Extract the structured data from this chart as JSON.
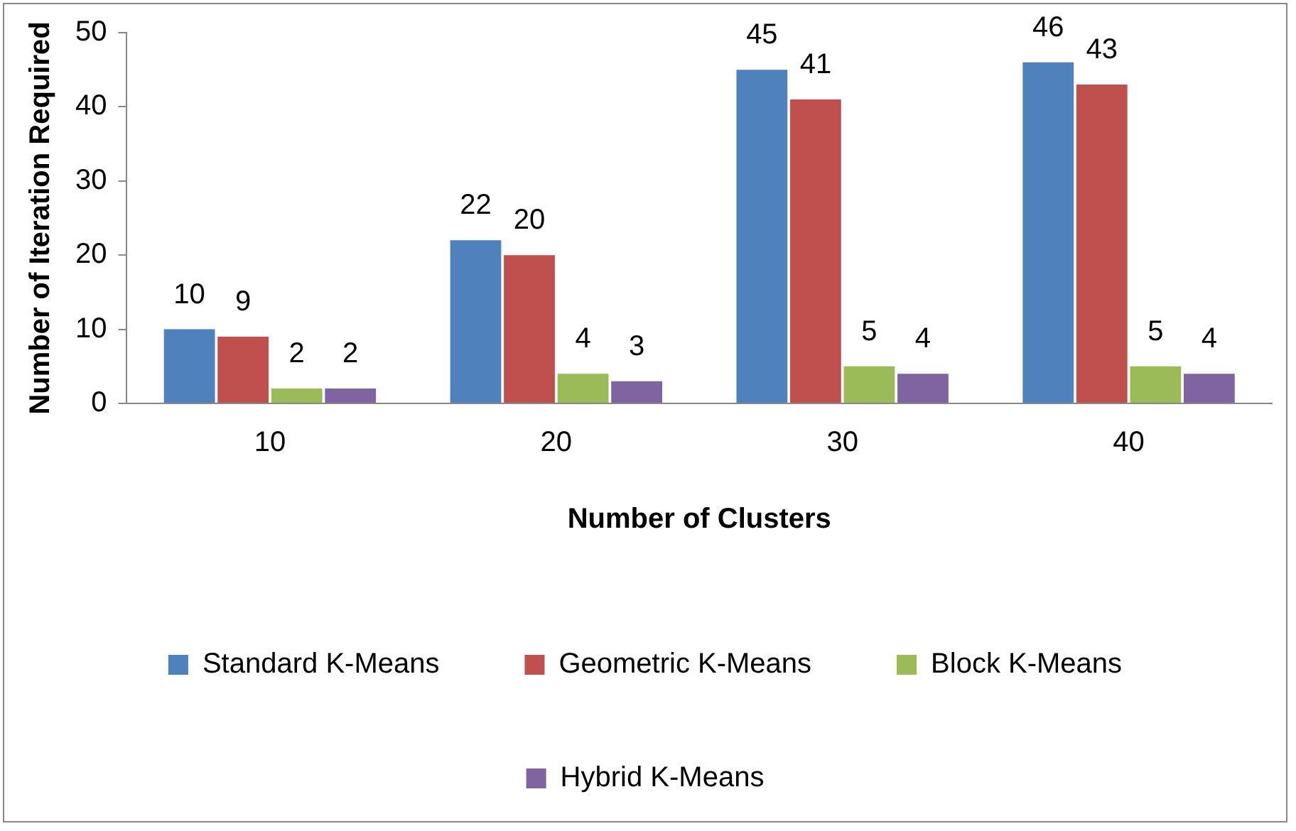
{
  "chart_data": {
    "type": "bar",
    "xlabel": "Number of Clusters",
    "ylabel": "Number of Iteration Required",
    "categories": [
      "10",
      "20",
      "30",
      "40"
    ],
    "series": [
      {
        "name": "Standard K-Means",
        "color": "#4f81bd",
        "values": [
          10,
          22,
          45,
          46
        ]
      },
      {
        "name": "Geometric K-Means",
        "color": "#c0504d",
        "values": [
          9,
          20,
          41,
          43
        ]
      },
      {
        "name": "Block K-Means",
        "color": "#9bbb59",
        "values": [
          2,
          4,
          5,
          5
        ]
      },
      {
        "name": "Hybrid K-Means",
        "color": "#8064a2",
        "values": [
          2,
          3,
          4,
          4
        ]
      }
    ],
    "ylim": [
      0,
      50
    ],
    "yticks": [
      0,
      10,
      20,
      30,
      40,
      50
    ],
    "grid": false,
    "legend": "bottom",
    "data_labels": true
  }
}
